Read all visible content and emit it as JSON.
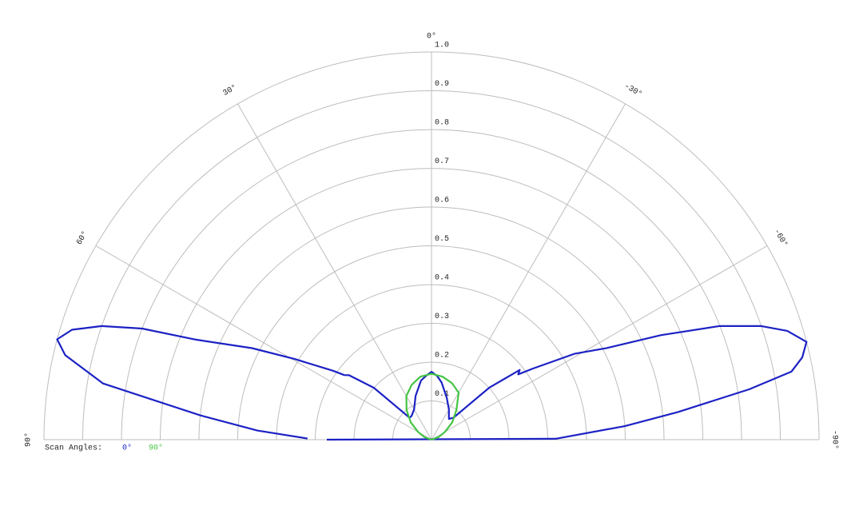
{
  "chart_data": {
    "type": "polar",
    "rlim": [
      0,
      1
    ],
    "rticks": [
      0.1,
      0.2,
      0.3,
      0.4,
      0.5,
      0.6,
      0.7,
      0.8,
      0.9,
      {
        "value": 1,
        "label": "1.0"
      }
    ],
    "thetalim": [
      90,
      -90
    ],
    "thetaticks": [
      {
        "value": 90,
        "label": "90°"
      },
      {
        "value": 60,
        "label": "60°"
      },
      {
        "value": 30,
        "label": "30°"
      },
      {
        "value": 0,
        "label": "0°"
      },
      {
        "value": -30,
        "label": "-30°"
      },
      {
        "value": -60,
        "label": "-60°"
      },
      {
        "value": -90,
        "label": "-90°"
      }
    ],
    "legend_title": "Scan Angles:",
    "series": [
      {
        "name": "0°",
        "color": "#1c22c4",
        "theta": [
          89.5,
          87,
          84,
          80.3,
          77,
          75,
          73,
          71,
          69,
          67,
          63,
          59.5,
          55,
          53.5,
          52,
          48,
          45,
          40,
          30,
          20,
          10,
          5,
          0,
          -5,
          -10,
          -20,
          -30,
          -40,
          -45,
          -48,
          -51.7,
          -53,
          -55,
          -59,
          -62.4,
          -65.5,
          -68.5,
          -71,
          -73,
          -75.4,
          -77.5,
          -79.3,
          -81,
          -83.6,
          -86,
          -89.6,
          90
        ],
        "values": [
          0.32,
          0.45,
          0.6,
          0.86,
          0.97,
          1.0,
          0.97,
          0.9,
          0.8,
          0.66,
          0.52,
          0.41,
          0.31,
          0.28,
          0.27,
          0.2,
          0.08,
          0.08,
          0.09,
          0.12,
          0.155,
          0.165,
          0.175,
          0.165,
          0.15,
          0.115,
          0.09,
          0.07,
          0.08,
          0.2,
          0.29,
          0.28,
          0.32,
          0.43,
          0.51,
          0.65,
          0.8,
          0.9,
          0.96,
          1.0,
          0.98,
          0.945,
          0.83,
          0.64,
          0.5,
          0.32,
          0.27
        ]
      },
      {
        "name": "90°",
        "color": "#44c444",
        "theta": [
          90,
          70,
          60,
          50,
          40,
          30,
          20,
          10,
          0,
          -10,
          -20,
          -30,
          -40,
          -50,
          -60,
          -70,
          -90
        ],
        "values": [
          0,
          0.02,
          0.04,
          0.07,
          0.1,
          0.13,
          0.15,
          0.165,
          0.17,
          0.165,
          0.155,
          0.14,
          0.1,
          0.07,
          0.04,
          0.02,
          0
        ]
      }
    ]
  }
}
